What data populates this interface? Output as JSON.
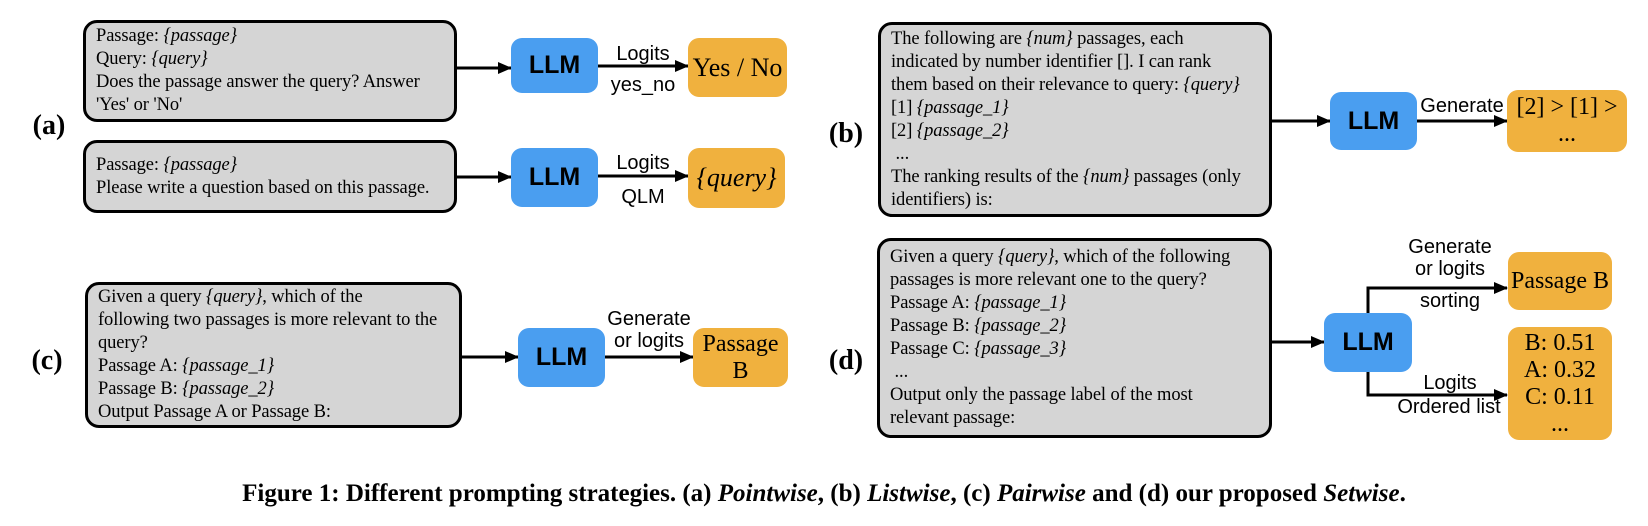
{
  "figure": {
    "caption": "Figure 1: Different prompting strategies. (a) *Pointwise*, (b) *Listwise*, (c) *Pairwise* and (d) our proposed *Setwise*."
  },
  "colors": {
    "llm_blue": "#4a9ef0",
    "output_orange": "#f0b13e",
    "prompt_gray": "#d5d5d5",
    "stroke_black": "#000000"
  },
  "panels": {
    "a": {
      "label": "(a)",
      "rows": [
        {
          "prompt_lines": [
            "Passage: {passage}",
            "Query: {query}",
            "Does the passage answer the query? Answer",
            "'Yes' or 'No'"
          ],
          "llm": "LLM",
          "arrow_label_top": "Logits",
          "arrow_label_bottom": "yes_no",
          "output": "Yes / No"
        },
        {
          "prompt_lines": [
            "Passage: {passage}",
            "Please write a question based on this passage."
          ],
          "llm": "LLM",
          "arrow_label_top": "Logits",
          "arrow_label_bottom": "QLM",
          "output": "{query}"
        }
      ]
    },
    "b": {
      "label": "(b)",
      "prompt_lines": [
        "The following are {num} passages, each",
        "indicated by number identifier []. I can rank",
        "them based on their relevance to query: {query}",
        "[1] {passage_1}",
        "[2] {passage_2}",
        " ...",
        "The ranking results of the {num} passages (only",
        "identifiers) is:"
      ],
      "llm": "LLM",
      "arrow_label": "Generate",
      "output": "[2] > [1] > ..."
    },
    "c": {
      "label": "(c)",
      "prompt_lines": [
        "Given a query {query}, which of the",
        "following two passages is more relevant to the",
        "query?",
        "Passage A: {passage_1}",
        "Passage B: {passage_2}",
        "Output Passage A or Passage B:"
      ],
      "llm": "LLM",
      "arrow_label_line1": "Generate",
      "arrow_label_line2": "or logits",
      "output": "Passage B"
    },
    "d": {
      "label": "(d)",
      "prompt_lines": [
        "Given a query {query}, which of the following",
        "passages is more relevant one to the query?",
        "Passage A: {passage_1}",
        "Passage B: {passage_2}",
        "Passage C: {passage_3}",
        " ...",
        "Output only the passage label of the most",
        "relevant passage:"
      ],
      "llm": "LLM",
      "top_arrow": {
        "label_line1": "Generate",
        "label_line2": "or logits",
        "label_below": "sorting",
        "output": "Passage B"
      },
      "bottom_arrow": {
        "label_above": "Logits",
        "label_below": "Ordered list",
        "output_lines": [
          "B: 0.51",
          "A: 0.32",
          "C: 0.11",
          "..."
        ]
      }
    }
  }
}
